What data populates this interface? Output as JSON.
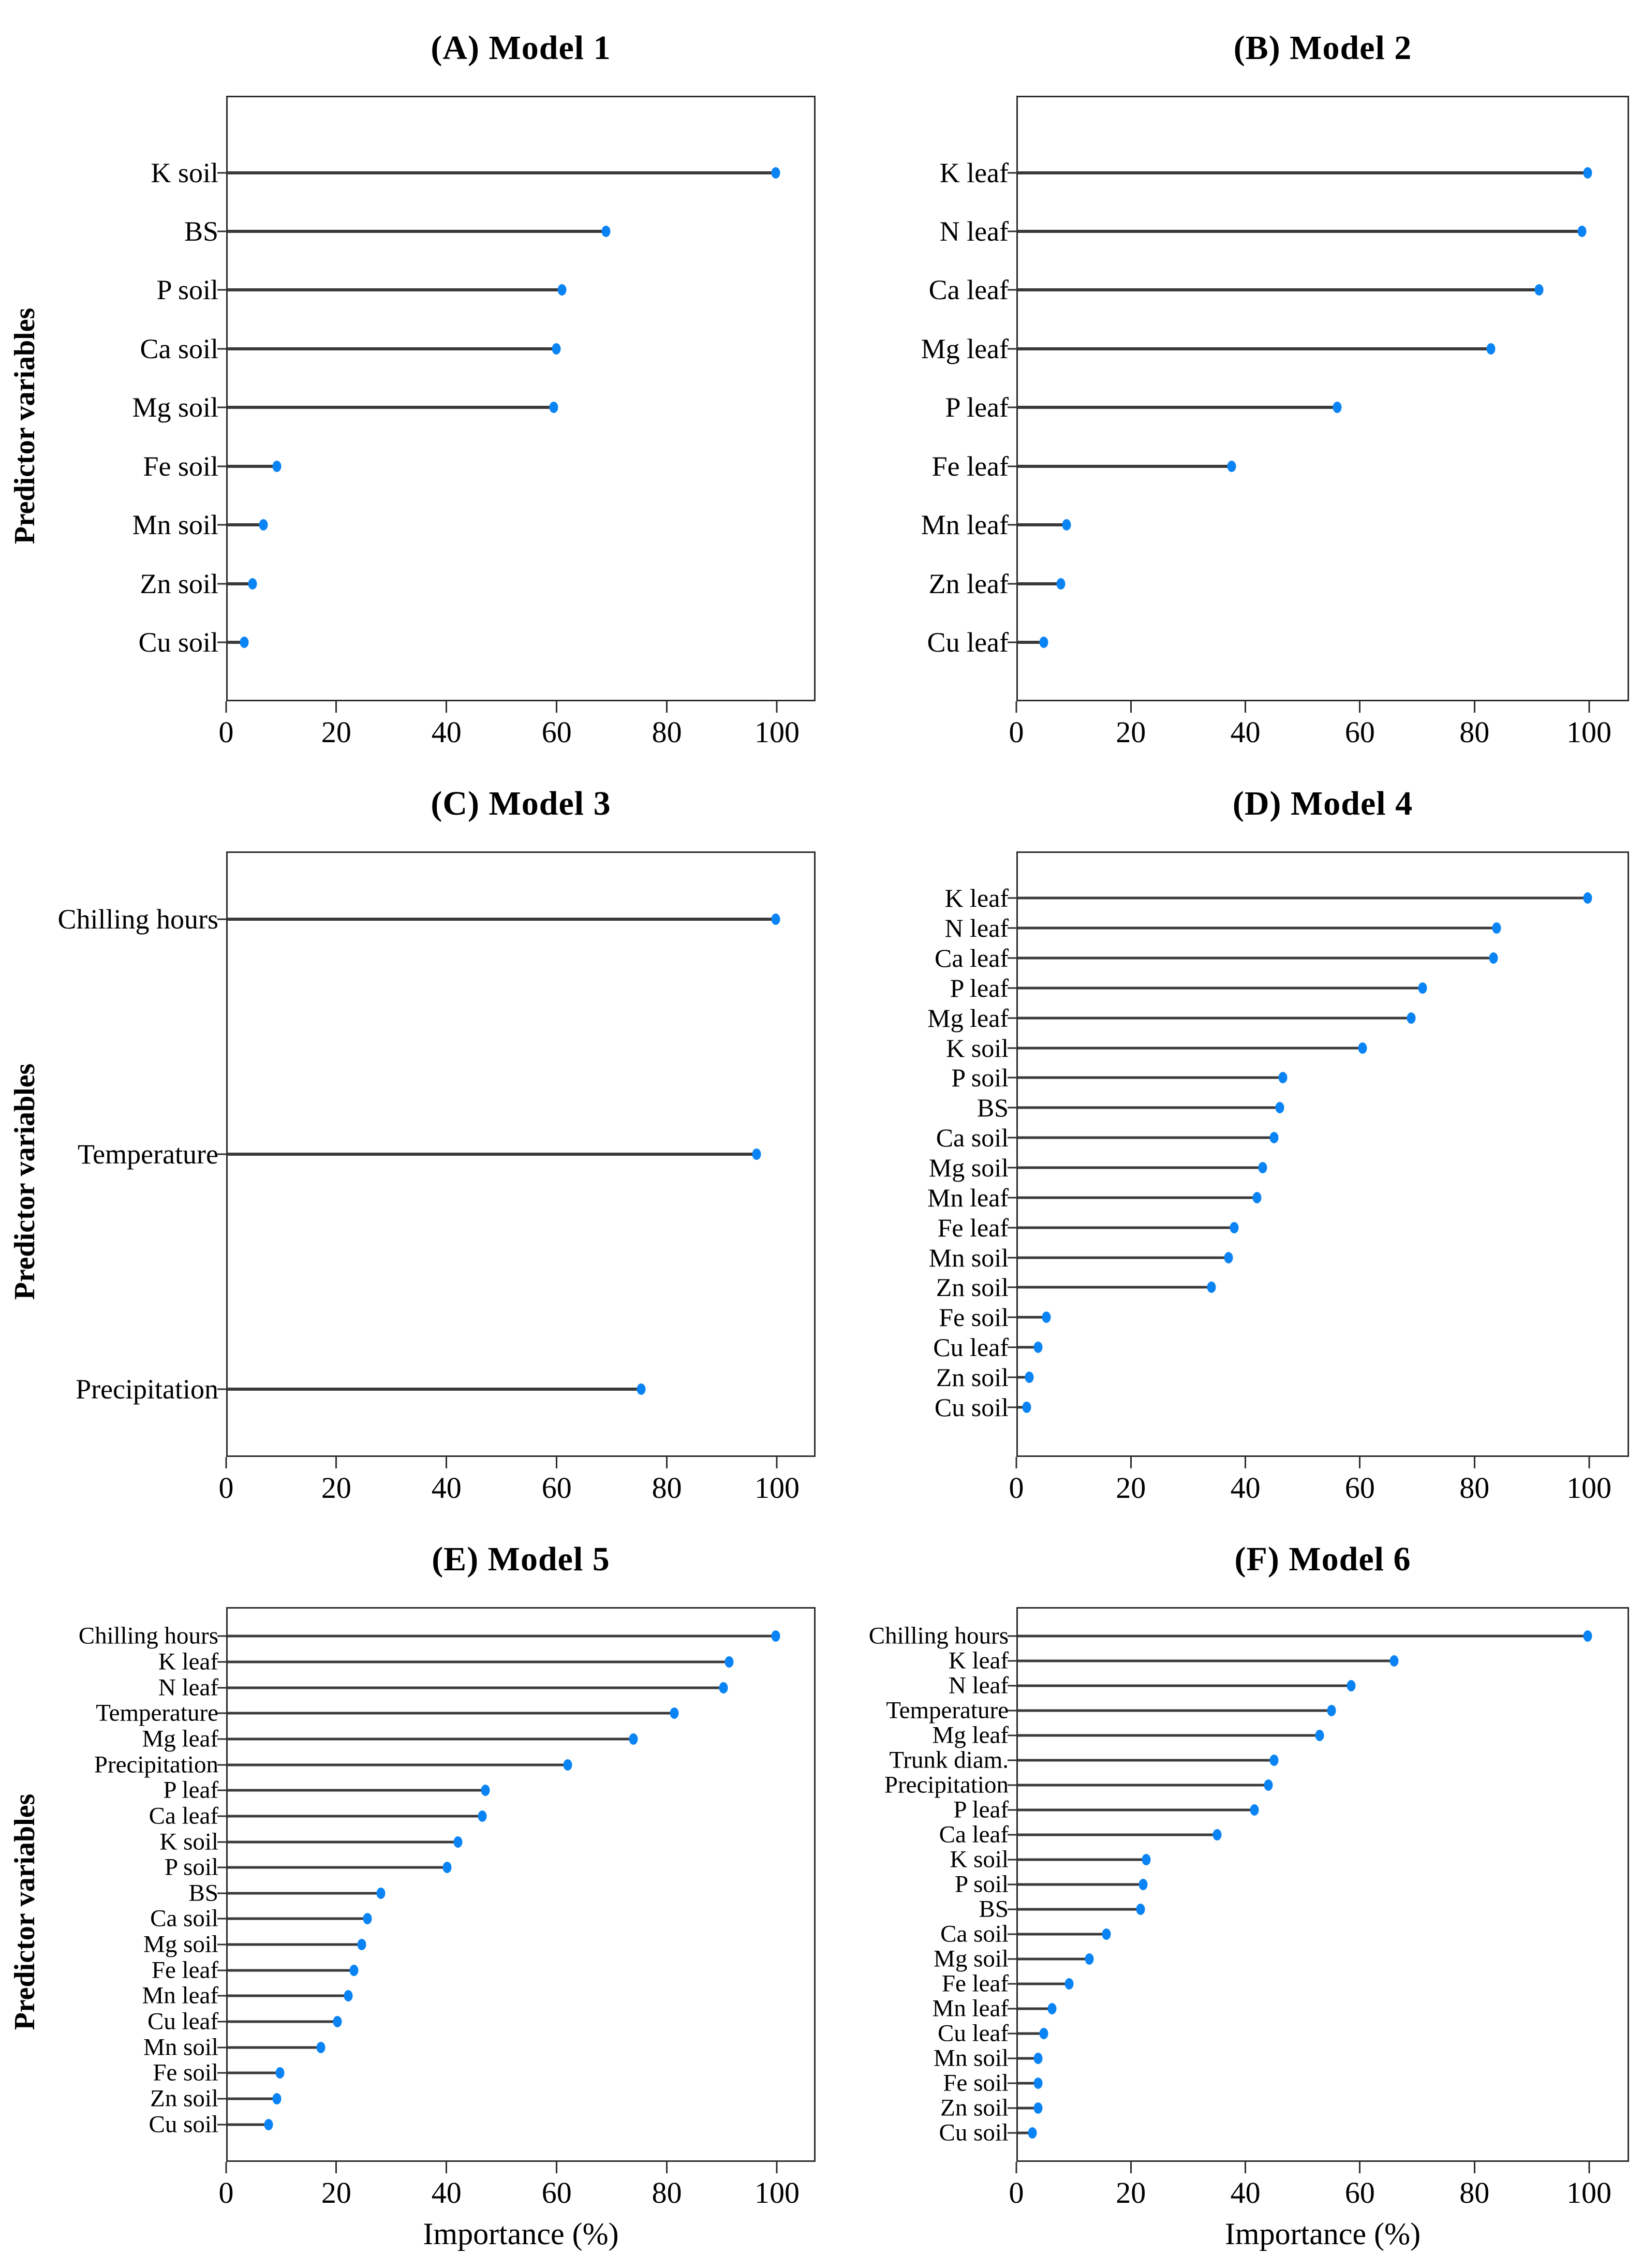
{
  "axes": {
    "xlabel": "Importance (%)",
    "ylabel": "Predictor variables",
    "xticks": [
      0,
      20,
      40,
      60,
      80,
      100
    ],
    "xlim": [
      0,
      107
    ]
  },
  "colors": {
    "dot": "#0a84f5",
    "stem": "#3a3a3a",
    "frame": "#2d2d2d"
  },
  "chart_data": [
    {
      "type": "lollipop",
      "panel": "A",
      "title": "(A) Model 1",
      "xlabel": "Importance (%)",
      "ylabel": "Predictor variables",
      "xlim": [
        0,
        107
      ],
      "categories": [
        "K soil",
        "BS",
        "P soil",
        "Ca soil",
        "Mg soil",
        "Fe soil",
        "Mn soil",
        "Zn soil",
        "Cu soil"
      ],
      "values": [
        100,
        69,
        61,
        60,
        59.5,
        9,
        6.5,
        4.5,
        3
      ]
    },
    {
      "type": "lollipop",
      "panel": "B",
      "title": "(B) Model 2",
      "xlabel": "Importance (%)",
      "ylabel": "Predictor variables",
      "xlim": [
        0,
        107
      ],
      "categories": [
        "K leaf",
        "N leaf",
        "Ca leaf",
        "Mg leaf",
        "P leaf",
        "Fe leaf",
        "Mn leaf",
        "Zn leaf",
        "Cu leaf"
      ],
      "values": [
        100,
        99,
        91.5,
        83,
        56,
        37.5,
        8.5,
        7.5,
        4.5
      ]
    },
    {
      "type": "lollipop",
      "panel": "C",
      "title": "(C) Model 3",
      "xlabel": "Importance (%)",
      "ylabel": "Predictor variables",
      "xlim": [
        0,
        107
      ],
      "categories": [
        "Chilling hours",
        "Temperature",
        "Precipitation"
      ],
      "values": [
        100,
        96.5,
        75.5
      ]
    },
    {
      "type": "lollipop",
      "panel": "D",
      "title": "(D) Model 4",
      "xlabel": "Importance (%)",
      "ylabel": "Predictor variables",
      "xlim": [
        0,
        107
      ],
      "categories": [
        "K leaf",
        "N leaf",
        "Ca leaf",
        "P leaf",
        "Mg leaf",
        "K soil",
        "P soil",
        "BS",
        "Ca soil",
        "Mg soil",
        "Mn leaf",
        "Fe leaf",
        "Mn soil",
        "Zn soil",
        "Fe soil",
        "Cu leaf",
        "Zn soil",
        "Cu soil"
      ],
      "values": [
        100,
        84,
        83.5,
        71,
        69,
        60.5,
        46.5,
        46,
        45,
        43,
        42,
        38,
        37,
        34,
        5,
        3.5,
        2,
        1.5
      ]
    },
    {
      "type": "lollipop",
      "panel": "E",
      "title": "(E) Model 5",
      "xlabel": "Importance (%)",
      "ylabel": "Predictor variables",
      "xlim": [
        0,
        107
      ],
      "categories": [
        "Chilling hours",
        "K leaf",
        "N leaf",
        "Temperature",
        "Mg leaf",
        "Precipitation",
        "P leaf",
        "Ca leaf",
        "K soil",
        "P soil",
        "BS",
        "Ca soil",
        "Mg soil",
        "Fe leaf",
        "Mn leaf",
        "Cu leaf",
        "Mn soil",
        "Fe soil",
        "Zn soil",
        "Cu soil"
      ],
      "values": [
        100,
        91.5,
        90.5,
        81.5,
        74,
        62,
        47,
        46.5,
        42,
        40,
        28,
        25.5,
        24.5,
        23,
        22,
        20,
        17,
        9.5,
        9,
        7.5
      ]
    },
    {
      "type": "lollipop",
      "panel": "F",
      "title": "(F) Model 6",
      "xlabel": "Importance (%)",
      "ylabel": "Predictor variables",
      "xlim": [
        0,
        107
      ],
      "categories": [
        "Chilling hours",
        "K leaf",
        "N leaf",
        "Temperature",
        "Mg leaf",
        "Trunk diam.",
        "Precipitation",
        "P leaf",
        "Ca leaf",
        "K soil",
        "P soil",
        "BS",
        "Ca soil",
        "Mg soil",
        "Fe leaf",
        "Mn leaf",
        "Cu leaf",
        "Mn soil",
        "Fe soil",
        "Zn soil",
        "Cu soil"
      ],
      "values": [
        100,
        66,
        58.5,
        55,
        53,
        45,
        44,
        41.5,
        35,
        22.5,
        22,
        21.5,
        15.5,
        12.5,
        9,
        6,
        4.5,
        3.5,
        3.5,
        3.5,
        2.5
      ]
    }
  ]
}
